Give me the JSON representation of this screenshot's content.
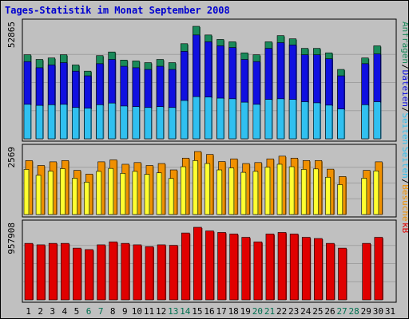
{
  "title": "Tages-Statistik im Monat September 2008",
  "colors": {
    "title": "#0000d0",
    "anfragen": "#1a8a5a",
    "dateien": "#1010e0",
    "seiten": "#30c0f0",
    "besuche": "#f09000",
    "besuche_seiten": "#ffff30",
    "kb": "#e00000",
    "weekend_day": "#007050",
    "weekday": "#000000"
  },
  "chart_data": [
    {
      "type": "bar",
      "panel": "top",
      "ymax_label": "52865",
      "ylim": [
        0,
        52865
      ],
      "categories": [
        "1",
        "2",
        "3",
        "4",
        "5",
        "6",
        "7",
        "8",
        "9",
        "10",
        "11",
        "12",
        "13",
        "14",
        "15",
        "16",
        "17",
        "18",
        "19",
        "20",
        "21",
        "22",
        "23",
        "24",
        "25",
        "26",
        "27",
        "28",
        "29",
        "30",
        "31"
      ],
      "series": [
        {
          "name": "Anfragen",
          "values": [
            39500,
            37300,
            38000,
            39500,
            34700,
            31800,
            39100,
            40800,
            37000,
            36600,
            35800,
            37300,
            35800,
            44700,
            52865,
            48800,
            46700,
            45600,
            40400,
            39500,
            45600,
            48500,
            47000,
            42500,
            42500,
            40400,
            32600,
            0,
            38000,
            43700,
            0
          ]
        },
        {
          "name": "Dateien",
          "values": [
            36300,
            33400,
            34700,
            35800,
            31800,
            29600,
            35300,
            37300,
            34100,
            33400,
            32600,
            34100,
            32600,
            41100,
            48800,
            45600,
            43700,
            42900,
            37300,
            36300,
            42500,
            45200,
            44100,
            39500,
            39500,
            37600,
            29600,
            0,
            35300,
            39900,
            0
          ]
        },
        {
          "name": "Seiten",
          "values": [
            16200,
            15700,
            16000,
            16200,
            14700,
            14400,
            16000,
            16800,
            15400,
            15100,
            14700,
            15100,
            14700,
            18000,
            19800,
            19600,
            19100,
            18800,
            17200,
            16200,
            18500,
            18800,
            18500,
            17400,
            16900,
            15800,
            14000,
            0,
            16000,
            17400,
            0
          ]
        }
      ],
      "side_labels": [
        "Anfragen",
        "Dateien",
        "Seiten"
      ]
    },
    {
      "type": "bar",
      "panel": "middle",
      "ymax_label": "2569",
      "ylim": [
        0,
        2569
      ],
      "categories": [
        "1",
        "2",
        "3",
        "4",
        "5",
        "6",
        "7",
        "8",
        "9",
        "10",
        "11",
        "12",
        "13",
        "14",
        "15",
        "16",
        "17",
        "18",
        "19",
        "20",
        "21",
        "22",
        "23",
        "24",
        "25",
        "26",
        "27",
        "28",
        "29",
        "30",
        "31"
      ],
      "series": [
        {
          "name": "Besuche",
          "values": [
            2200,
            2000,
            2150,
            2200,
            1800,
            1650,
            2150,
            2230,
            2050,
            2120,
            2000,
            2080,
            1820,
            2300,
            2569,
            2450,
            2160,
            2270,
            2080,
            2120,
            2270,
            2380,
            2300,
            2200,
            2200,
            1850,
            1550,
            0,
            1800,
            2150,
            0
          ]
        },
        {
          "name": "Seiten",
          "values": [
            1840,
            1600,
            1770,
            1870,
            1480,
            1320,
            1760,
            1880,
            1680,
            1760,
            1640,
            1700,
            1470,
            1950,
            2200,
            2080,
            1820,
            1900,
            1720,
            1760,
            1930,
            2050,
            1950,
            1840,
            1860,
            1520,
            1220,
            0,
            1480,
            1780,
            0
          ]
        }
      ],
      "side_labels": [
        "Seiten",
        "Besuche"
      ]
    },
    {
      "type": "bar",
      "panel": "bottom",
      "ymax_label": "957908",
      "ylim": [
        0,
        957908
      ],
      "categories": [
        "1",
        "2",
        "3",
        "4",
        "5",
        "6",
        "7",
        "8",
        "9",
        "10",
        "11",
        "12",
        "13",
        "14",
        "15",
        "16",
        "17",
        "18",
        "19",
        "20",
        "21",
        "22",
        "23",
        "24",
        "25",
        "26",
        "27",
        "28",
        "29",
        "30",
        "31"
      ],
      "series": [
        {
          "name": "kB",
          "values": [
            746000,
            727000,
            746000,
            746000,
            683000,
            664000,
            727000,
            766000,
            746000,
            727000,
            703000,
            727000,
            720000,
            883000,
            958000,
            910000,
            890000,
            870000,
            826000,
            766000,
            870000,
            890000,
            870000,
            826000,
            810000,
            746000,
            683000,
            0,
            746000,
            826000,
            0
          ]
        }
      ],
      "side_labels": [
        "kB"
      ],
      "weekend_days": [
        "6",
        "7",
        "13",
        "14",
        "20",
        "21",
        "27",
        "28"
      ]
    }
  ]
}
